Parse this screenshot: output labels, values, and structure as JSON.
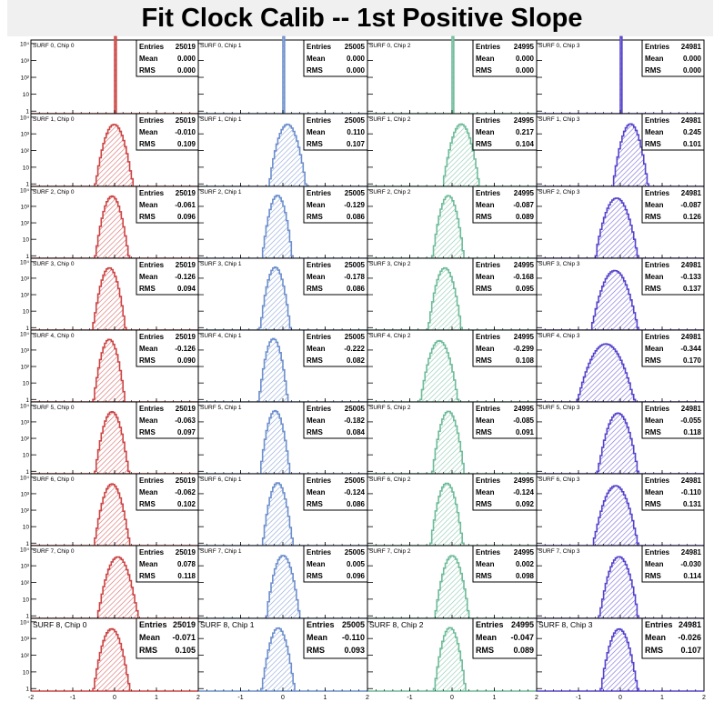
{
  "title": "Fit Clock Calib -- 1st Positive Slope",
  "colors": {
    "chip": [
      "#cc4444",
      "#6d8fcc",
      "#6dbb99",
      "#5544cc"
    ]
  },
  "stat_labels": {
    "entries": "Entries",
    "mean": "Mean",
    "rms": "RMS"
  },
  "chart_data": {
    "type": "histogram-grid",
    "rows": 9,
    "cols": 4,
    "xlim": [
      -2,
      2
    ],
    "x_tick_labels": [
      "-2",
      "-1",
      "0",
      "1",
      "2"
    ],
    "y_scale": "log",
    "y_tick_labels": [
      "1",
      "10",
      "10²",
      "10³",
      "10⁴"
    ],
    "panels": [
      {
        "title": "SURF 0, Chip 0",
        "entries": "25019",
        "mean": "0.000",
        "rms": "0.000"
      },
      {
        "title": "SURF 0, Chip 1",
        "entries": "25005",
        "mean": "0.000",
        "rms": "0.000"
      },
      {
        "title": "SURF 0, Chip 2",
        "entries": "24995",
        "mean": "0.000",
        "rms": "0.000"
      },
      {
        "title": "SURF 0, Chip 3",
        "entries": "24981",
        "mean": "0.000",
        "rms": "0.000"
      },
      {
        "title": "SURF 1, Chip 0",
        "entries": "25019",
        "mean": "-0.010",
        "rms": "0.109"
      },
      {
        "title": "SURF 1, Chip 1",
        "entries": "25005",
        "mean": "0.110",
        "rms": "0.107"
      },
      {
        "title": "SURF 1, Chip 2",
        "entries": "24995",
        "mean": "0.217",
        "rms": "0.104"
      },
      {
        "title": "SURF 1, Chip 3",
        "entries": "24981",
        "mean": "0.245",
        "rms": "0.101"
      },
      {
        "title": "SURF 2, Chip 0",
        "entries": "25019",
        "mean": "-0.061",
        "rms": "0.096"
      },
      {
        "title": "SURF 2, Chip 1",
        "entries": "25005",
        "mean": "-0.129",
        "rms": "0.086"
      },
      {
        "title": "SURF 2, Chip 2",
        "entries": "24995",
        "mean": "-0.087",
        "rms": "0.089"
      },
      {
        "title": "SURF 2, Chip 3",
        "entries": "24981",
        "mean": "-0.087",
        "rms": "0.126"
      },
      {
        "title": "SURF 3, Chip 0",
        "entries": "25019",
        "mean": "-0.126",
        "rms": "0.094"
      },
      {
        "title": "SURF 3, Chip 1",
        "entries": "25005",
        "mean": "-0.178",
        "rms": "0.086"
      },
      {
        "title": "SURF 3, Chip 2",
        "entries": "24995",
        "mean": "-0.168",
        "rms": "0.095"
      },
      {
        "title": "SURF 3, Chip 3",
        "entries": "24981",
        "mean": "-0.133",
        "rms": "0.137"
      },
      {
        "title": "SURF 4, Chip 0",
        "entries": "25019",
        "mean": "-0.126",
        "rms": "0.090"
      },
      {
        "title": "SURF 4, Chip 1",
        "entries": "25005",
        "mean": "-0.222",
        "rms": "0.082"
      },
      {
        "title": "SURF 4, Chip 2",
        "entries": "24995",
        "mean": "-0.299",
        "rms": "0.108"
      },
      {
        "title": "SURF 4, Chip 3",
        "entries": "24981",
        "mean": "-0.344",
        "rms": "0.170"
      },
      {
        "title": "SURF 5, Chip 0",
        "entries": "25019",
        "mean": "-0.063",
        "rms": "0.097"
      },
      {
        "title": "SURF 5, Chip 1",
        "entries": "25005",
        "mean": "-0.182",
        "rms": "0.084"
      },
      {
        "title": "SURF 5, Chip 2",
        "entries": "24995",
        "mean": "-0.085",
        "rms": "0.091"
      },
      {
        "title": "SURF 5, Chip 3",
        "entries": "24981",
        "mean": "-0.055",
        "rms": "0.118"
      },
      {
        "title": "SURF 6, Chip 0",
        "entries": "25019",
        "mean": "-0.062",
        "rms": "0.102"
      },
      {
        "title": "SURF 6, Chip 1",
        "entries": "25005",
        "mean": "-0.124",
        "rms": "0.086"
      },
      {
        "title": "SURF 6, Chip 2",
        "entries": "24995",
        "mean": "-0.124",
        "rms": "0.092"
      },
      {
        "title": "SURF 6, Chip 3",
        "entries": "24981",
        "mean": "-0.110",
        "rms": "0.131"
      },
      {
        "title": "SURF 7, Chip 0",
        "entries": "25019",
        "mean": "0.078",
        "rms": "0.118"
      },
      {
        "title": "SURF 7, Chip 1",
        "entries": "25005",
        "mean": "0.005",
        "rms": "0.096"
      },
      {
        "title": "SURF 7, Chip 2",
        "entries": "24995",
        "mean": "0.002",
        "rms": "0.098"
      },
      {
        "title": "SURF 7, Chip 3",
        "entries": "24981",
        "mean": "-0.030",
        "rms": "0.114"
      },
      {
        "title": "SURF 8, Chip 0",
        "entries": "25019",
        "mean": "-0.071",
        "rms": "0.105"
      },
      {
        "title": "SURF 8, Chip 1",
        "entries": "25005",
        "mean": "-0.110",
        "rms": "0.093"
      },
      {
        "title": "SURF 8, Chip 2",
        "entries": "24995",
        "mean": "-0.047",
        "rms": "0.089"
      },
      {
        "title": "SURF 8, Chip 3",
        "entries": "24981",
        "mean": "-0.026",
        "rms": "0.107"
      }
    ]
  }
}
